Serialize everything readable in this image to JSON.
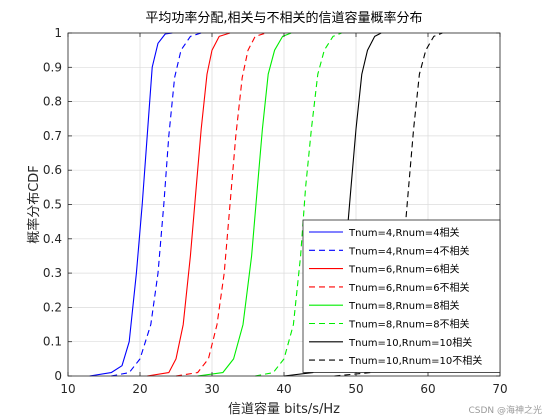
{
  "chart_data": {
    "type": "line",
    "title": "平均功率分配,相关与不相关的信道容量概率分布",
    "xlabel": "信道容量 bits/s/Hz",
    "ylabel": "概率分布CDF",
    "xlim": [
      10,
      70
    ],
    "ylim": [
      0,
      1
    ],
    "xticks": [
      "10",
      "20",
      "30",
      "40",
      "50",
      "60",
      "70"
    ],
    "yticks": [
      "0",
      "0.1",
      "0.2",
      "0.3",
      "0.4",
      "0.5",
      "0.6",
      "0.7",
      "0.8",
      "0.9",
      "1"
    ],
    "grid": true,
    "legend_position": "bottom-right",
    "series": [
      {
        "name": "Tnum=4,Rnum=4相关",
        "color": "#0000ff",
        "dash": "solid",
        "x": [
          13,
          16,
          17.5,
          18.5,
          19.5,
          20.3,
          21,
          21.7,
          22.5,
          23.5,
          24.5
        ],
        "y": [
          0,
          0.01,
          0.03,
          0.1,
          0.3,
          0.5,
          0.7,
          0.9,
          0.97,
          0.997,
          1
        ]
      },
      {
        "name": "Tnum=4,Rnum=4不相关",
        "color": "#0000ff",
        "dash": "dashed",
        "x": [
          16,
          18.5,
          20,
          21.5,
          22.5,
          23.3,
          24,
          24.8,
          25.7,
          27,
          28.5
        ],
        "y": [
          0,
          0.01,
          0.05,
          0.15,
          0.3,
          0.5,
          0.7,
          0.87,
          0.95,
          0.99,
          1
        ]
      },
      {
        "name": "Tnum=6,Rnum=6相关",
        "color": "#ff0000",
        "dash": "solid",
        "x": [
          21,
          24,
          25,
          26,
          27,
          27.8,
          28.5,
          29.3,
          30,
          31,
          32.5
        ],
        "y": [
          0,
          0.01,
          0.05,
          0.15,
          0.35,
          0.55,
          0.72,
          0.88,
          0.95,
          0.99,
          1
        ]
      },
      {
        "name": "Tnum=6,Rnum=6不相关",
        "color": "#ff0000",
        "dash": "dashed",
        "x": [
          25,
          28,
          29.5,
          30.7,
          31.7,
          32.5,
          33.3,
          34.2,
          35,
          36,
          37.5
        ],
        "y": [
          0,
          0.01,
          0.05,
          0.15,
          0.3,
          0.5,
          0.7,
          0.87,
          0.95,
          0.99,
          1
        ]
      },
      {
        "name": "Tnum=8,Rnum=8相关",
        "color": "#00ee00",
        "dash": "solid",
        "x": [
          28,
          31.5,
          33,
          34.3,
          35.5,
          36.3,
          37,
          37.8,
          38.7,
          39.8,
          41
        ],
        "y": [
          0,
          0.01,
          0.05,
          0.15,
          0.35,
          0.55,
          0.72,
          0.88,
          0.95,
          0.99,
          1
        ]
      },
      {
        "name": "Tnum=8,Rnum=8不相关",
        "color": "#00ee00",
        "dash": "dashed",
        "x": [
          36,
          38.5,
          40,
          41.3,
          42.3,
          43,
          43.8,
          44.7,
          45.6,
          46.8,
          48
        ],
        "y": [
          0,
          0.01,
          0.05,
          0.15,
          0.35,
          0.55,
          0.72,
          0.88,
          0.95,
          0.99,
          1
        ]
      },
      {
        "name": "Tnum=10,Rnum=10相关",
        "color": "#000000",
        "dash": "solid",
        "x": [
          40,
          44,
          46,
          47.5,
          48.5,
          49.3,
          50,
          50.8,
          51.6,
          52.6,
          53.5
        ],
        "y": [
          0,
          0.01,
          0.05,
          0.15,
          0.35,
          0.55,
          0.72,
          0.88,
          0.95,
          0.99,
          1
        ]
      },
      {
        "name": "Tnum=10,Rnum=10不相关",
        "color": "#000000",
        "dash": "dashed",
        "x": [
          47,
          52,
          54,
          55.5,
          56.5,
          57.3,
          58,
          58.8,
          59.7,
          60.8,
          62
        ],
        "y": [
          0,
          0.01,
          0.05,
          0.15,
          0.35,
          0.55,
          0.72,
          0.88,
          0.95,
          0.99,
          1
        ]
      }
    ]
  },
  "watermark": "CSDN @海神之光"
}
